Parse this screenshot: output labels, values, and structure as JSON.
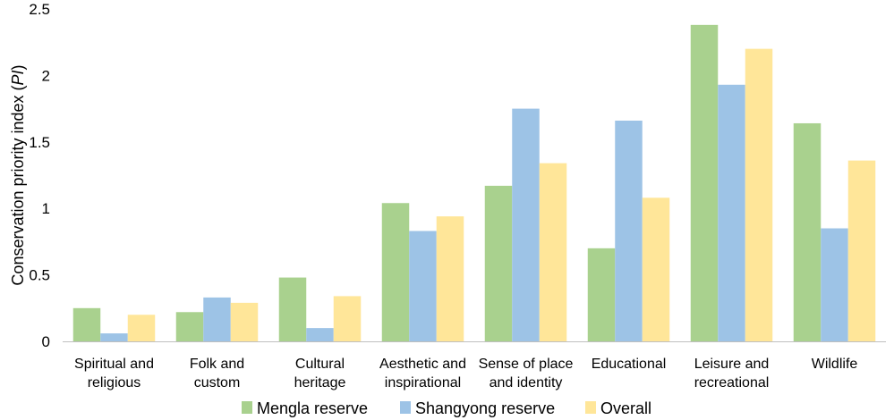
{
  "chart_data": {
    "type": "bar",
    "categories": [
      [
        "Spiritual and",
        "religious"
      ],
      [
        "Folk and",
        "custom"
      ],
      [
        "Cultural",
        "heritage"
      ],
      [
        "Aesthetic and",
        "inspirational"
      ],
      [
        "Sense of place",
        "and identity"
      ],
      [
        "Educational"
      ],
      [
        "Leisure and",
        "recreational"
      ],
      [
        "Wildlife"
      ]
    ],
    "series": [
      {
        "name": "Mengla reserve",
        "color": "#a9d18e",
        "values": [
          0.25,
          0.22,
          0.48,
          1.04,
          1.17,
          0.7,
          2.38,
          1.64
        ]
      },
      {
        "name": "Shangyong reserve",
        "color": "#9dc3e6",
        "values": [
          0.06,
          0.33,
          0.1,
          0.83,
          1.75,
          1.66,
          1.93,
          0.85
        ]
      },
      {
        "name": "Overall",
        "color": "#ffe699",
        "values": [
          0.2,
          0.29,
          0.34,
          0.94,
          1.34,
          1.08,
          2.2,
          1.36
        ]
      }
    ],
    "ylabel_main": "Conservation priority index (",
    "ylabel_italic": "PI",
    "ylabel_end": ")",
    "ylim": [
      0,
      2.5
    ],
    "yticks": [
      "0",
      "0.5",
      "1",
      "1.5",
      "2",
      "2.5"
    ],
    "ytick_values": [
      0,
      0.5,
      1,
      1.5,
      2,
      2.5
    ],
    "grid": false,
    "legend_position": "bottom"
  }
}
